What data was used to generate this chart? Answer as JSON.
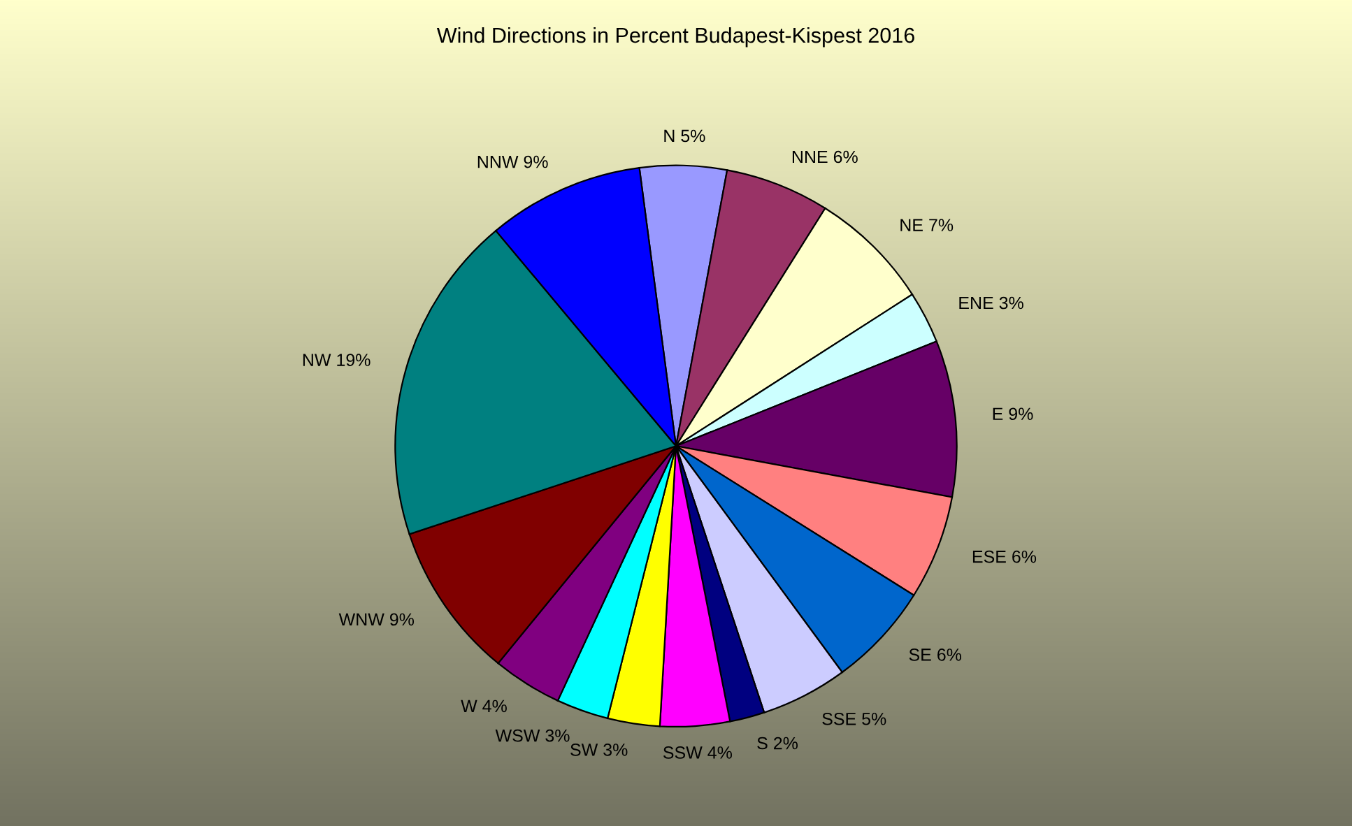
{
  "chart_data": {
    "type": "pie",
    "title": "Wind Directions in Percent Budapest-Kispest 2016",
    "categories": [
      "N",
      "NNE",
      "NE",
      "ENE",
      "E",
      "ESE",
      "SE",
      "SSE",
      "S",
      "SSW",
      "SW",
      "WSW",
      "W",
      "WNW",
      "NW",
      "NNW"
    ],
    "values": [
      5,
      6,
      7,
      3,
      9,
      6,
      6,
      5,
      2,
      4,
      3,
      3,
      4,
      9,
      19,
      9
    ],
    "colors": [
      "#9999ff",
      "#993366",
      "#ffffcc",
      "#ccffff",
      "#660066",
      "#ff8080",
      "#0066cc",
      "#ccccff",
      "#000080",
      "#ff00ff",
      "#ffff00",
      "#00ffff",
      "#800080",
      "#800000",
      "#008080",
      "#0000ff"
    ],
    "value_labels": [
      "5%",
      "6%",
      "7%",
      "3%",
      "9%",
      "6%",
      "6%",
      "5%",
      "2%",
      "4%",
      "3%",
      "3%",
      "4%",
      "9%",
      "19%",
      "9%"
    ],
    "legend": false
  }
}
